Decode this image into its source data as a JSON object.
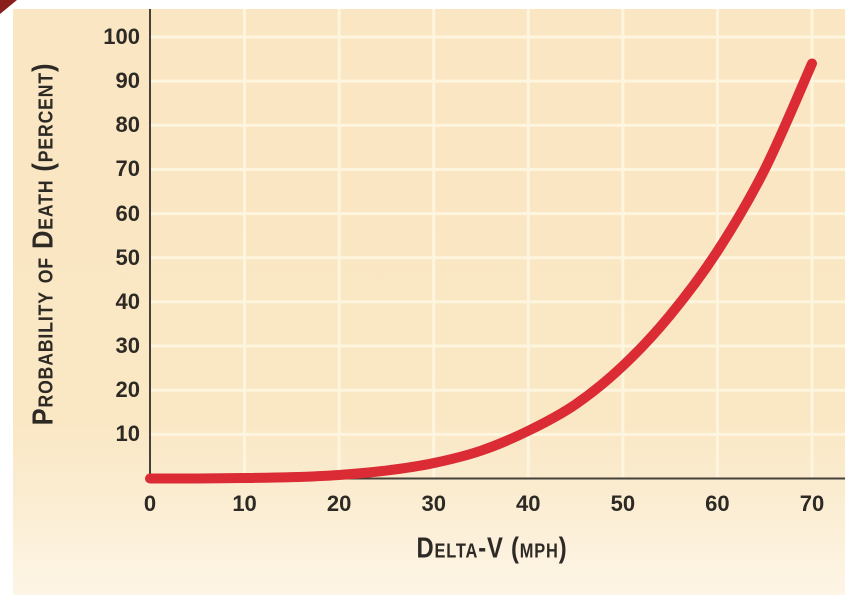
{
  "figure": {
    "y_axis_title": "Probability of Death (percent)",
    "x_axis_title": "Delta-V (mph)"
  },
  "chart_data": {
    "type": "line",
    "title": "",
    "xlabel": "Delta-V (mph)",
    "ylabel": "Probability of Death (percent)",
    "xlim": [
      0,
      70
    ],
    "ylim": [
      0,
      100
    ],
    "x_ticks": [
      0,
      10,
      20,
      30,
      40,
      50,
      60,
      70
    ],
    "y_ticks": [
      10,
      20,
      30,
      40,
      50,
      60,
      70,
      80,
      90,
      100
    ],
    "grid": true,
    "legend": false,
    "series": [
      {
        "name": "probability_of_death_vs_delta_v",
        "x": [
          0,
          5,
          10,
          15,
          20,
          25,
          30,
          35,
          40,
          45,
          50,
          55,
          60,
          65,
          70
        ],
        "y": [
          0,
          0,
          0.1,
          0.3,
          0.8,
          1.8,
          3.5,
          6.3,
          10.8,
          16.8,
          25.5,
          37,
          51.5,
          70,
          94
        ]
      }
    ]
  },
  "style": {
    "curve_color": "#DB2B35",
    "gridline_color": "#FEF5DF",
    "axis_color": "#45403A",
    "text_color": "#2D2A25",
    "background_top": "#FAE6C2",
    "background_bottom": "#FDF5E6",
    "corner_mark_color": "#8A1E1B"
  }
}
